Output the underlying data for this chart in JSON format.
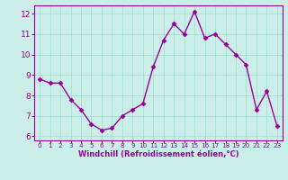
{
  "x": [
    0,
    1,
    2,
    3,
    4,
    5,
    6,
    7,
    8,
    9,
    10,
    11,
    12,
    13,
    14,
    15,
    16,
    17,
    18,
    19,
    20,
    21,
    22,
    23
  ],
  "y": [
    8.8,
    8.6,
    8.6,
    7.8,
    7.3,
    6.6,
    6.3,
    6.4,
    7.0,
    7.3,
    7.6,
    9.4,
    10.7,
    11.5,
    11.0,
    12.1,
    10.8,
    11.0,
    10.5,
    10.0,
    9.5,
    7.3,
    8.2,
    6.5
  ],
  "line_color": "#990099",
  "marker": "D",
  "markersize": 2.5,
  "linewidth": 1.0,
  "xlabel": "Windchill (Refroidissement éolien,°C)",
  "xlabel_color": "#990099",
  "xlim": [
    -0.5,
    23.5
  ],
  "ylim": [
    5.8,
    12.4
  ],
  "yticks": [
    6,
    7,
    8,
    9,
    10,
    11,
    12
  ],
  "xticks": [
    0,
    1,
    2,
    3,
    4,
    5,
    6,
    7,
    8,
    9,
    10,
    11,
    12,
    13,
    14,
    15,
    16,
    17,
    18,
    19,
    20,
    21,
    22,
    23
  ],
  "background_color": "#cceee8",
  "grid_color": "#99ddcc",
  "tick_color": "#990099",
  "axis_color": "#990099",
  "spine_color": "#990099",
  "xlabel_fontsize": 6.0,
  "xtick_fontsize": 5.2,
  "ytick_fontsize": 6.5
}
